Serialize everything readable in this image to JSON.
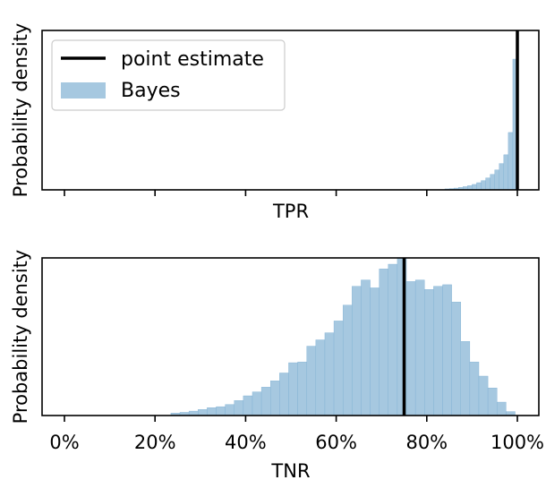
{
  "chart_data": [
    {
      "type": "histogram",
      "xlabel": "TPR",
      "ylabel": "Probability density",
      "xlim": [
        0,
        1
      ],
      "x_ticks_labeled": false,
      "yticks_labeled": false,
      "point_estimate": 1.0,
      "bins": [
        {
          "x0": 0.84,
          "x1": 0.85,
          "density": 0.006
        },
        {
          "x0": 0.85,
          "x1": 0.86,
          "density": 0.008
        },
        {
          "x0": 0.86,
          "x1": 0.87,
          "density": 0.011
        },
        {
          "x0": 0.87,
          "x1": 0.88,
          "density": 0.015
        },
        {
          "x0": 0.88,
          "x1": 0.89,
          "density": 0.02
        },
        {
          "x0": 0.89,
          "x1": 0.9,
          "density": 0.026
        },
        {
          "x0": 0.9,
          "x1": 0.91,
          "density": 0.034
        },
        {
          "x0": 0.91,
          "x1": 0.92,
          "density": 0.045
        },
        {
          "x0": 0.92,
          "x1": 0.93,
          "density": 0.058
        },
        {
          "x0": 0.93,
          "x1": 0.94,
          "density": 0.075
        },
        {
          "x0": 0.94,
          "x1": 0.95,
          "density": 0.097
        },
        {
          "x0": 0.95,
          "x1": 0.96,
          "density": 0.125
        },
        {
          "x0": 0.96,
          "x1": 0.97,
          "density": 0.165
        },
        {
          "x0": 0.97,
          "x1": 0.98,
          "density": 0.22
        },
        {
          "x0": 0.98,
          "x1": 0.99,
          "density": 0.36
        },
        {
          "x0": 0.99,
          "x1": 1.0,
          "density": 0.82
        }
      ],
      "ylim": [
        0,
        1.0
      ]
    },
    {
      "type": "histogram",
      "xlabel": "TNR",
      "ylabel": "Probability density",
      "xlim": [
        0,
        1
      ],
      "x_ticks": [
        0,
        0.2,
        0.4,
        0.6,
        0.8,
        1.0
      ],
      "x_tick_labels": [
        "0%",
        "20%",
        "40%",
        "60%",
        "80%",
        "100%"
      ],
      "yticks_labeled": false,
      "point_estimate": 0.75,
      "bins": [
        {
          "x0": 0.235,
          "x1": 0.255,
          "density": 0.015
        },
        {
          "x0": 0.255,
          "x1": 0.275,
          "density": 0.02
        },
        {
          "x0": 0.275,
          "x1": 0.295,
          "density": 0.028
        },
        {
          "x0": 0.295,
          "x1": 0.315,
          "density": 0.038
        },
        {
          "x0": 0.315,
          "x1": 0.335,
          "density": 0.05
        },
        {
          "x0": 0.335,
          "x1": 0.355,
          "density": 0.056
        },
        {
          "x0": 0.355,
          "x1": 0.375,
          "density": 0.07
        },
        {
          "x0": 0.375,
          "x1": 0.395,
          "density": 0.095
        },
        {
          "x0": 0.395,
          "x1": 0.415,
          "density": 0.125
        },
        {
          "x0": 0.415,
          "x1": 0.435,
          "density": 0.15
        },
        {
          "x0": 0.435,
          "x1": 0.455,
          "density": 0.18
        },
        {
          "x0": 0.455,
          "x1": 0.475,
          "density": 0.22
        },
        {
          "x0": 0.475,
          "x1": 0.495,
          "density": 0.27
        },
        {
          "x0": 0.495,
          "x1": 0.515,
          "density": 0.335
        },
        {
          "x0": 0.515,
          "x1": 0.535,
          "density": 0.34
        },
        {
          "x0": 0.535,
          "x1": 0.555,
          "density": 0.44
        },
        {
          "x0": 0.555,
          "x1": 0.575,
          "density": 0.48
        },
        {
          "x0": 0.575,
          "x1": 0.595,
          "density": 0.525
        },
        {
          "x0": 0.595,
          "x1": 0.615,
          "density": 0.6
        },
        {
          "x0": 0.615,
          "x1": 0.635,
          "density": 0.7
        },
        {
          "x0": 0.635,
          "x1": 0.655,
          "density": 0.82
        },
        {
          "x0": 0.655,
          "x1": 0.675,
          "density": 0.86
        },
        {
          "x0": 0.675,
          "x1": 0.695,
          "density": 0.81
        },
        {
          "x0": 0.695,
          "x1": 0.715,
          "density": 0.93
        },
        {
          "x0": 0.715,
          "x1": 0.735,
          "density": 0.96
        },
        {
          "x0": 0.735,
          "x1": 0.755,
          "density": 1.0
        },
        {
          "x0": 0.755,
          "x1": 0.775,
          "density": 0.85
        },
        {
          "x0": 0.775,
          "x1": 0.795,
          "density": 0.86
        },
        {
          "x0": 0.795,
          "x1": 0.815,
          "density": 0.8
        },
        {
          "x0": 0.815,
          "x1": 0.835,
          "density": 0.82
        },
        {
          "x0": 0.835,
          "x1": 0.855,
          "density": 0.83
        },
        {
          "x0": 0.855,
          "x1": 0.875,
          "density": 0.72
        },
        {
          "x0": 0.875,
          "x1": 0.895,
          "density": 0.47
        },
        {
          "x0": 0.895,
          "x1": 0.915,
          "density": 0.34
        },
        {
          "x0": 0.915,
          "x1": 0.935,
          "density": 0.25
        },
        {
          "x0": 0.935,
          "x1": 0.955,
          "density": 0.175
        },
        {
          "x0": 0.955,
          "x1": 0.975,
          "density": 0.085
        },
        {
          "x0": 0.975,
          "x1": 0.995,
          "density": 0.025
        }
      ],
      "ylim": [
        0,
        1.0
      ]
    }
  ],
  "legend": {
    "placement": "top-left",
    "items": [
      {
        "label": "point estimate",
        "kind": "line",
        "color": "#000000"
      },
      {
        "label": "Bayes",
        "kind": "patch",
        "color": "#a6c8e0"
      }
    ]
  },
  "colors": {
    "bar_fill": "#a6c8e0",
    "bar_edge": "#7fb0d3",
    "point_estimate": "#000000",
    "axes": "#000000"
  }
}
